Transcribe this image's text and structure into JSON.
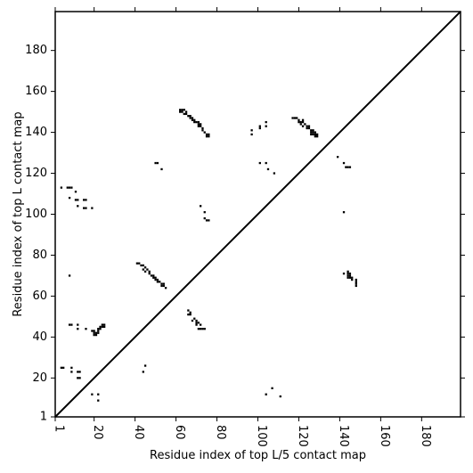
{
  "chart_data": {
    "type": "heatmap",
    "title": "",
    "xlabel": "Residue index of top L/5 contact map",
    "ylabel": "Residue index of top L contact map",
    "xlim": [
      1,
      199
    ],
    "ylim": [
      1,
      199
    ],
    "x_ticks": [
      "1",
      "20",
      "40",
      "60",
      "80",
      "100",
      "120",
      "140",
      "160",
      "180"
    ],
    "x_tick_values": [
      1,
      20,
      40,
      60,
      80,
      100,
      120,
      140,
      160,
      180
    ],
    "y_ticks": [
      "1",
      "20",
      "40",
      "60",
      "80",
      "100",
      "120",
      "140",
      "160",
      "180"
    ],
    "y_tick_values": [
      1,
      20,
      40,
      60,
      80,
      100,
      120,
      140,
      160,
      180
    ],
    "diagonal": true,
    "colors": {
      "contact": "#000000",
      "background": "#ffffff"
    },
    "points": [
      [
        4,
        113
      ],
      [
        7,
        113
      ],
      [
        8,
        113
      ],
      [
        9,
        113
      ],
      [
        8,
        108
      ],
      [
        11,
        111
      ],
      [
        11,
        107
      ],
      [
        12,
        107
      ],
      [
        12,
        104
      ],
      [
        15,
        107
      ],
      [
        16,
        107
      ],
      [
        15,
        103
      ],
      [
        16,
        103
      ],
      [
        19,
        103
      ],
      [
        4,
        25
      ],
      [
        5,
        25
      ],
      [
        9,
        25
      ],
      [
        9,
        23
      ],
      [
        12,
        23
      ],
      [
        13,
        23
      ],
      [
        12,
        20
      ],
      [
        13,
        20
      ],
      [
        8,
        70
      ],
      [
        8,
        46
      ],
      [
        9,
        46
      ],
      [
        12,
        46
      ],
      [
        12,
        44
      ],
      [
        16,
        44
      ],
      [
        19,
        43
      ],
      [
        20,
        43
      ],
      [
        20,
        42
      ],
      [
        21,
        42
      ],
      [
        20,
        41
      ],
      [
        22,
        43
      ],
      [
        22,
        44
      ],
      [
        23,
        44
      ],
      [
        23,
        45
      ],
      [
        24,
        45
      ],
      [
        24,
        46
      ],
      [
        25,
        46
      ],
      [
        25,
        45
      ],
      [
        22,
        42
      ],
      [
        21,
        41
      ],
      [
        19,
        12
      ],
      [
        22,
        12
      ],
      [
        22,
        9
      ],
      [
        41,
        76
      ],
      [
        42,
        76
      ],
      [
        43,
        75
      ],
      [
        44,
        75
      ],
      [
        45,
        74
      ],
      [
        44,
        73
      ],
      [
        46,
        73
      ],
      [
        45,
        72
      ],
      [
        47,
        72
      ],
      [
        47,
        71
      ],
      [
        48,
        70
      ],
      [
        49,
        70
      ],
      [
        49,
        69
      ],
      [
        50,
        69
      ],
      [
        51,
        68
      ],
      [
        50,
        68
      ],
      [
        51,
        67
      ],
      [
        52,
        67
      ],
      [
        53,
        66
      ],
      [
        54,
        66
      ],
      [
        53,
        65
      ],
      [
        54,
        65
      ],
      [
        55,
        64
      ],
      [
        45,
        26
      ],
      [
        44,
        23
      ],
      [
        50,
        125
      ],
      [
        51,
        125
      ],
      [
        53,
        122
      ],
      [
        62,
        151
      ],
      [
        63,
        151
      ],
      [
        64,
        151
      ],
      [
        62,
        150
      ],
      [
        63,
        150
      ],
      [
        65,
        150
      ],
      [
        64,
        149
      ],
      [
        65,
        149
      ],
      [
        66,
        148
      ],
      [
        67,
        148
      ],
      [
        67,
        147
      ],
      [
        68,
        147
      ],
      [
        68,
        146
      ],
      [
        69,
        146
      ],
      [
        69,
        145
      ],
      [
        70,
        145
      ],
      [
        71,
        145
      ],
      [
        71,
        144
      ],
      [
        72,
        144
      ],
      [
        71,
        143
      ],
      [
        72,
        143
      ],
      [
        73,
        142
      ],
      [
        73,
        141
      ],
      [
        74,
        140
      ],
      [
        75,
        139
      ],
      [
        76,
        139
      ],
      [
        75,
        138
      ],
      [
        76,
        138
      ],
      [
        72,
        104
      ],
      [
        74,
        101
      ],
      [
        74,
        98
      ],
      [
        75,
        97
      ],
      [
        76,
        97
      ],
      [
        66,
        53
      ],
      [
        67,
        52
      ],
      [
        66,
        51
      ],
      [
        67,
        51
      ],
      [
        68,
        48
      ],
      [
        69,
        49
      ],
      [
        70,
        48
      ],
      [
        70,
        47
      ],
      [
        71,
        47
      ],
      [
        70,
        46
      ],
      [
        72,
        46
      ],
      [
        71,
        44
      ],
      [
        72,
        44
      ],
      [
        73,
        44
      ],
      [
        74,
        44
      ],
      [
        97,
        139
      ],
      [
        97,
        141
      ],
      [
        101,
        142
      ],
      [
        101,
        143
      ],
      [
        104,
        143
      ],
      [
        104,
        145
      ],
      [
        101,
        125
      ],
      [
        104,
        125
      ],
      [
        105,
        122
      ],
      [
        108,
        120
      ],
      [
        104,
        12
      ],
      [
        107,
        15
      ],
      [
        111,
        11
      ],
      [
        117,
        147
      ],
      [
        118,
        147
      ],
      [
        119,
        147
      ],
      [
        120,
        146
      ],
      [
        122,
        146
      ],
      [
        120,
        145
      ],
      [
        121,
        145
      ],
      [
        122,
        145
      ],
      [
        121,
        144
      ],
      [
        123,
        144
      ],
      [
        122,
        143
      ],
      [
        124,
        143
      ],
      [
        125,
        143
      ],
      [
        124,
        142
      ],
      [
        125,
        142
      ],
      [
        126,
        141
      ],
      [
        127,
        141
      ],
      [
        126,
        140
      ],
      [
        127,
        140
      ],
      [
        128,
        140
      ],
      [
        126,
        139
      ],
      [
        127,
        139
      ],
      [
        128,
        139
      ],
      [
        129,
        139
      ],
      [
        129,
        138
      ],
      [
        128,
        138
      ],
      [
        139,
        128
      ],
      [
        142,
        125
      ],
      [
        143,
        123
      ],
      [
        144,
        123
      ],
      [
        145,
        123
      ],
      [
        142,
        101
      ],
      [
        142,
        71
      ],
      [
        144,
        72
      ],
      [
        144,
        71
      ],
      [
        145,
        71
      ],
      [
        144,
        70
      ],
      [
        145,
        70
      ],
      [
        144,
        69
      ],
      [
        145,
        69
      ],
      [
        146,
        69
      ],
      [
        146,
        68
      ],
      [
        148,
        68
      ],
      [
        148,
        67
      ],
      [
        148,
        66
      ],
      [
        148,
        65
      ]
    ]
  }
}
